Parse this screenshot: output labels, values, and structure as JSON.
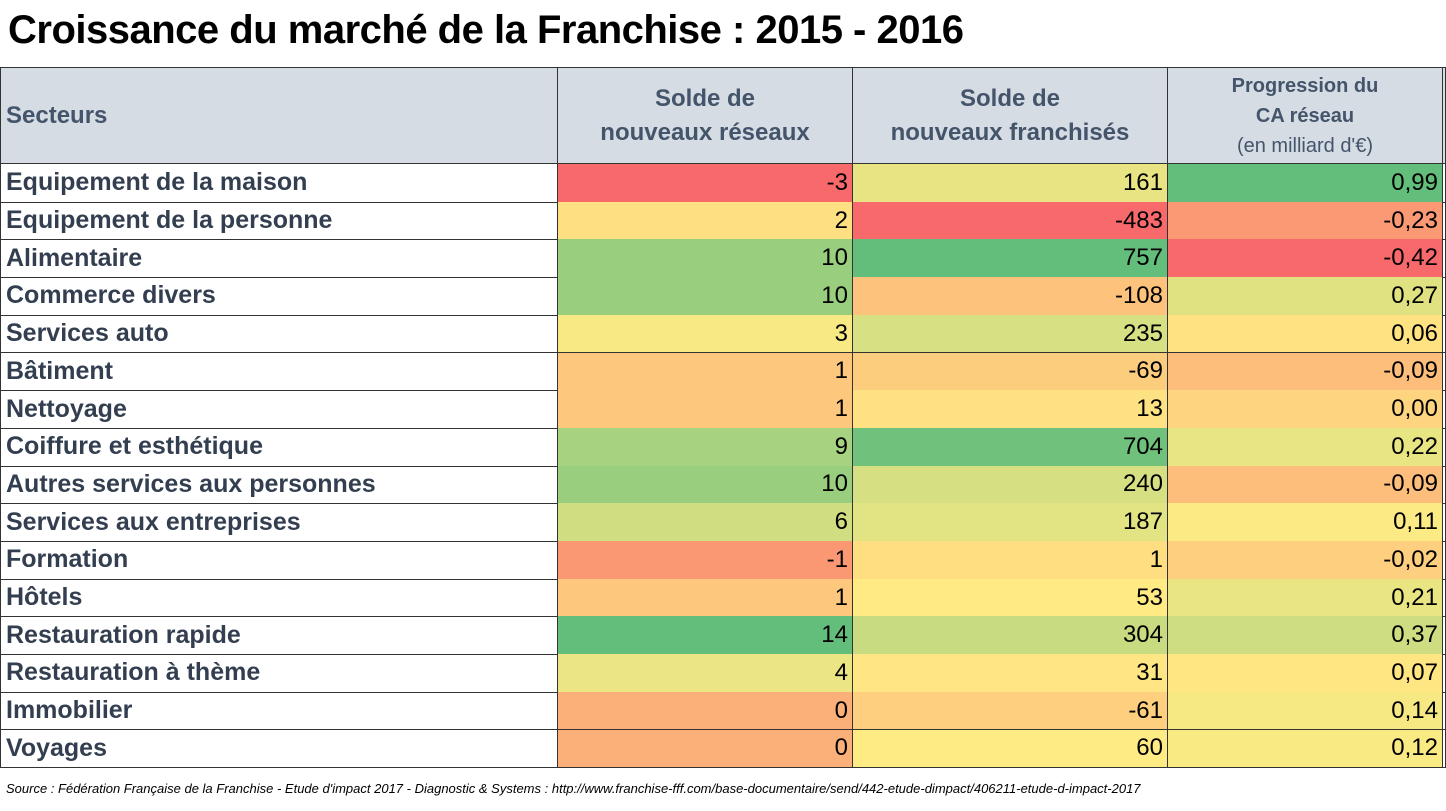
{
  "title": "Croissance du marché de la Franchise : 2015 - 2016",
  "table": {
    "header": [
      "Secteurs",
      [
        "Solde de",
        "nouveaux réseaux"
      ],
      [
        "Solde de",
        "nouveaux franchisés"
      ],
      [
        "Progression du",
        "CA réseau",
        "(en milliard d'€)"
      ]
    ],
    "rows": [
      [
        "Equipement de la maison",
        "-3",
        "161",
        "0,99"
      ],
      [
        "Equipement de la personne",
        "2",
        "-483",
        "-0,23"
      ],
      [
        "Alimentaire",
        "10",
        "757",
        "-0,42"
      ],
      [
        "Commerce divers",
        "10",
        "-108",
        "0,27"
      ],
      [
        "Services auto",
        "3",
        "235",
        "0,06"
      ],
      [
        "Bâtiment",
        "1",
        "-69",
        "-0,09"
      ],
      [
        "Nettoyage",
        "1",
        "13",
        "0,00"
      ],
      [
        "Coiffure et esthétique",
        "9",
        "704",
        "0,22"
      ],
      [
        "Autres services aux personnes",
        "10",
        "240",
        "-0,09"
      ],
      [
        "Services aux entreprises",
        "6",
        "187",
        "0,11"
      ],
      [
        "Formation",
        "-1",
        "1",
        "-0,02"
      ],
      [
        "Hôtels",
        "1",
        "53",
        "0,21"
      ],
      [
        "Restauration rapide",
        "14",
        "304",
        "0,37"
      ],
      [
        "Restauration à thème",
        "4",
        "31",
        "0,07"
      ],
      [
        "Immobilier",
        "0",
        "-61",
        "0,14"
      ],
      [
        "Voyages",
        "0",
        "60",
        "0,12"
      ]
    ]
  },
  "source": "Source : Fédération Française de la Franchise - Etude d'impact 2017 - Diagnostic & Systems : http://www.franchise-fff.com/base-documentaire/send/442-etude-dimpact/406211-etude-d-impact-2017"
}
